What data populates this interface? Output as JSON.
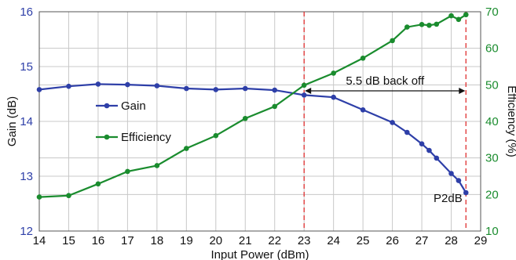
{
  "chart_data": {
    "type": "line",
    "xlabel": "Input Power (dBm)",
    "ylabel_left": "Gain (dB)",
    "ylabel_right": "Efficiency (%)",
    "xlim": [
      14,
      29
    ],
    "ylim_left": [
      12,
      16
    ],
    "ylim_right": [
      10,
      70
    ],
    "x_ticks": [
      "14",
      "15",
      "16",
      "17",
      "18",
      "19",
      "20",
      "21",
      "22",
      "23",
      "24",
      "25",
      "26",
      "27",
      "28",
      "29"
    ],
    "y_ticks_left": [
      "12",
      "13",
      "14",
      "15",
      "16"
    ],
    "y_ticks_right": [
      "10",
      "20",
      "30",
      "40",
      "50",
      "60",
      "70"
    ],
    "grid": true,
    "legend_position": "left-center",
    "series": [
      {
        "name": "Gain",
        "axis": "left",
        "color": "#2e3fa8",
        "x": [
          14,
          15,
          16,
          17,
          18,
          19,
          20,
          21,
          22,
          23,
          24,
          25,
          26,
          26.5,
          27,
          27.25,
          27.5,
          28,
          28.25,
          28.5
        ],
        "y": [
          14.58,
          14.64,
          14.68,
          14.67,
          14.65,
          14.6,
          14.58,
          14.6,
          14.57,
          14.48,
          14.44,
          14.21,
          13.98,
          13.8,
          13.59,
          13.47,
          13.33,
          13.05,
          12.92,
          12.7
        ]
      },
      {
        "name": "Efficiency",
        "axis": "right",
        "color": "#1a8c2e",
        "x": [
          14,
          15,
          16,
          17,
          18,
          19,
          20,
          21,
          22,
          23,
          24,
          25,
          26,
          26.5,
          27,
          27.25,
          27.5,
          28,
          28.25,
          28.5
        ],
        "y": [
          19.3,
          19.7,
          22.9,
          26.3,
          27.9,
          32.6,
          36.1,
          40.8,
          44.1,
          49.9,
          53.2,
          57.3,
          62.1,
          65.8,
          66.5,
          66.3,
          66.6,
          68.9,
          67.9,
          69.2
        ]
      }
    ],
    "vlines": [
      {
        "x": 23,
        "color": "#e03030"
      },
      {
        "x": 28.5,
        "color": "#e03030"
      }
    ],
    "annotations": {
      "backoff_label": "5.5 dB back off",
      "backoff_from": 23,
      "backoff_to": 28.5,
      "backoff_y_right": 50,
      "p2db_label": "P2dB"
    },
    "legend": {
      "gain_label": "Gain",
      "efficiency_label": "Efficiency"
    }
  },
  "colors": {
    "gain": "#2e3fa8",
    "efficiency": "#1a8c2e",
    "gain_axis": "#2e3fa8",
    "efficiency_axis": "#1a8c2e",
    "grid": "#c8c8c8",
    "vline": "#e03030"
  }
}
